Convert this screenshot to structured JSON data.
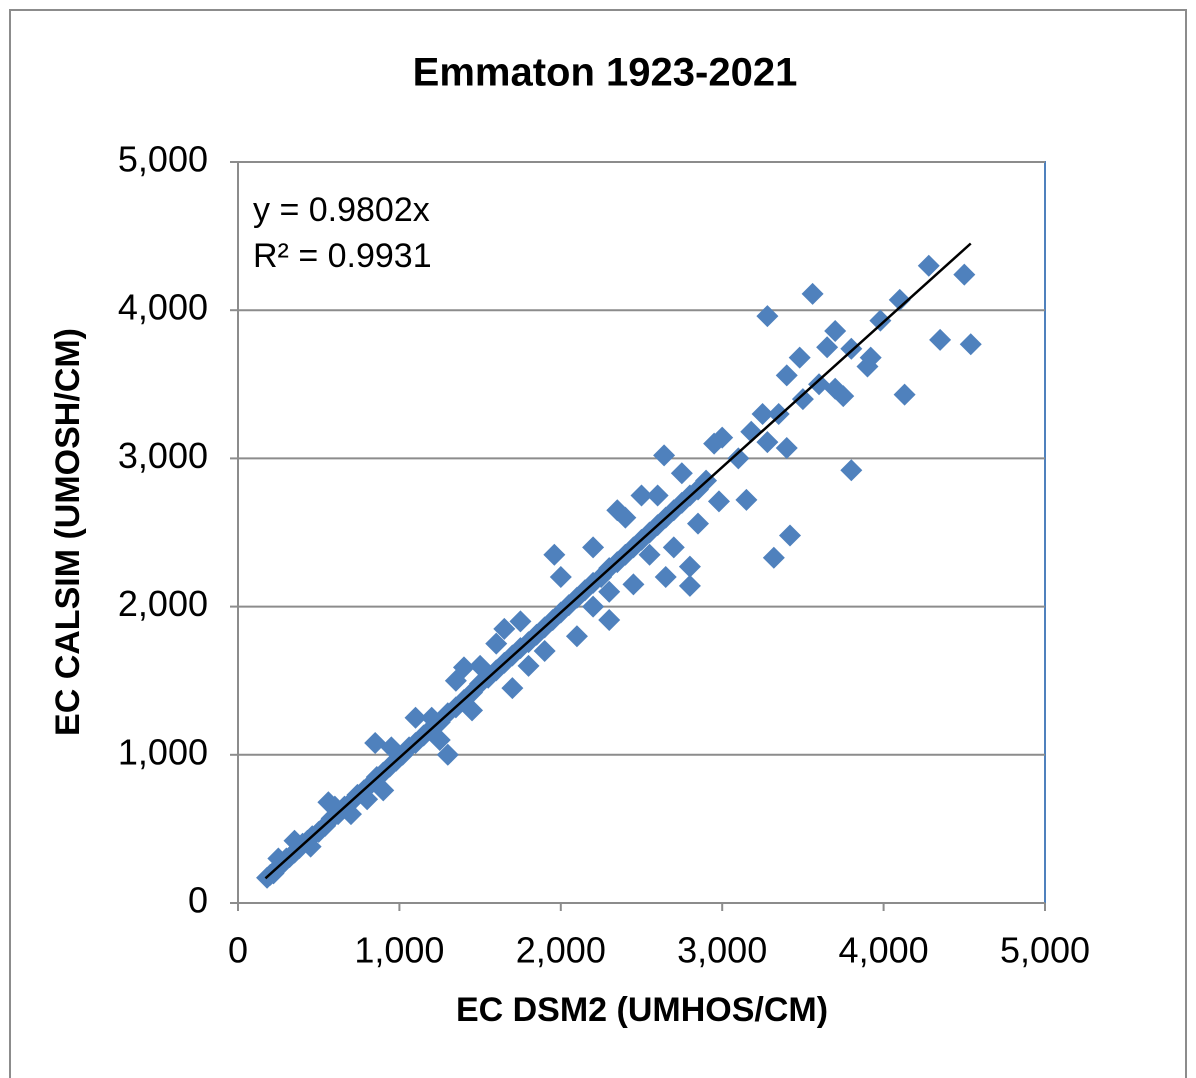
{
  "chart_data": {
    "type": "scatter",
    "title": "Emmaton 1923-2021",
    "xlabel": "EC DSM2 (UMHOS/CM)",
    "ylabel": "EC CALSIM (UMOSH/CM)",
    "annotations": [
      "y = 0.9802x",
      "R² = 0.9931"
    ],
    "trendline": {
      "slope": 0.9802,
      "x": [
        170,
        4540
      ]
    },
    "color": "#4f81bd",
    "grid": true,
    "xlim": [
      0,
      5000
    ],
    "ylim": [
      0,
      5000
    ],
    "xticks": [
      0,
      {
        "value": 1000,
        "label": "1,000"
      },
      {
        "value": 2000,
        "label": "2,000"
      },
      {
        "value": 3000,
        "label": "3,000"
      },
      {
        "value": 4000,
        "label": "4,000"
      },
      {
        "value": 5000,
        "label": "5,000"
      }
    ],
    "yticks": [
      0,
      {
        "value": 1000,
        "label": "1,000"
      },
      {
        "value": 2000,
        "label": "2,000"
      },
      {
        "value": 3000,
        "label": "3,000"
      },
      {
        "value": 4000,
        "label": "4,000"
      },
      {
        "value": 5000,
        "label": "5,000"
      }
    ],
    "x": [
      180,
      200,
      220,
      240,
      260,
      280,
      300,
      320,
      350,
      380,
      400,
      430,
      460,
      500,
      540,
      580,
      620,
      660,
      700,
      740,
      780,
      820,
      860,
      900,
      940,
      980,
      1020,
      1060,
      1100,
      1150,
      1200,
      1250,
      1300,
      1350,
      1400,
      1450,
      1500,
      1550,
      1600,
      1650,
      1700,
      1750,
      1800,
      1850,
      1900,
      1950,
      2000,
      2050,
      2100,
      2150,
      2200,
      2250,
      2300,
      2350,
      2400,
      2450,
      2500,
      2550,
      2600,
      2650,
      2700,
      2750,
      2800,
      2850,
      2900,
      900,
      950,
      1200,
      1250,
      1450,
      1500,
      1600,
      1750,
      1900,
      2000,
      2100,
      2200,
      2300,
      2400,
      2450,
      2500,
      2550,
      2600,
      2700,
      2750,
      2650,
      2350,
      2200,
      1800,
      1650,
      1350,
      1100,
      800,
      700,
      600,
      450,
      350,
      250,
      3280,
      3560,
      3980,
      4100,
      4280,
      4500,
      4350,
      4540,
      4130,
      3800,
      3420,
      3320,
      3700,
      3650,
      3750,
      3800,
      3920,
      3900,
      3480,
      3400,
      3400,
      3250,
      3280,
      3150,
      2980,
      2800,
      2800,
      2850,
      2640,
      2950,
      3000,
      3100,
      3180,
      3350,
      3500,
      2300,
      1960,
      1700,
      1400,
      1300,
      850,
      560,
      3600,
      3700
    ],
    "values": [
      170,
      190,
      200,
      230,
      250,
      270,
      300,
      310,
      340,
      370,
      400,
      420,
      450,
      480,
      520,
      570,
      600,
      650,
      680,
      730,
      760,
      800,
      850,
      880,
      920,
      960,
      1000,
      1050,
      1080,
      1130,
      1180,
      1220,
      1280,
      1320,
      1370,
      1420,
      1480,
      1520,
      1570,
      1620,
      1670,
      1720,
      1760,
      1810,
      1860,
      1910,
      1960,
      2010,
      2060,
      2110,
      2160,
      2200,
      2260,
      2300,
      2350,
      2400,
      2450,
      2500,
      2550,
      2600,
      2650,
      2700,
      2750,
      2790,
      2850,
      760,
      1050,
      1250,
      1100,
      1300,
      1600,
      1750,
      1900,
      1700,
      2200,
      1800,
      2400,
      2100,
      2600,
      2150,
      2750,
      2350,
      2750,
      2400,
      2900,
      2200,
      2650,
      2000,
      1600,
      1850,
      1500,
      1250,
      700,
      600,
      650,
      380,
      420,
      300,
      3960,
      4110,
      3930,
      4070,
      4300,
      4240,
      3800,
      3770,
      3430,
      2920,
      2480,
      2330,
      3860,
      3750,
      3420,
      3740,
      3680,
      3620,
      3680,
      3560,
      3070,
      3300,
      3110,
      2720,
      2710,
      2140,
      2270,
      2560,
      3020,
      3100,
      3140,
      3000,
      3180,
      3300,
      3400,
      1910,
      2350,
      1450,
      1590,
      1000,
      1080,
      680,
      3500,
      3470
    ]
  }
}
